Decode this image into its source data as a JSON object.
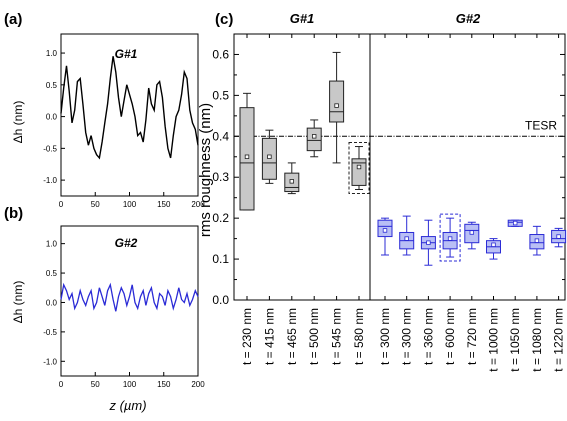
{
  "chart_data": [
    {
      "type": "line",
      "panel_label": "(a)",
      "inset_label": "G#1",
      "ylabel": "Δh (nm)",
      "xlim": [
        0,
        200
      ],
      "ylim": [
        -1.25,
        1.3
      ],
      "xticks": [
        "0",
        "50",
        "100",
        "150",
        "200"
      ],
      "yticks": [
        "1.0",
        "0.5",
        "0.0",
        "-0.5",
        "-1.0"
      ],
      "ytick_values": [
        1.0,
        0.5,
        0.0,
        -0.5,
        -1.0
      ],
      "color": "#000000",
      "x": [
        0,
        4,
        8,
        12,
        16,
        20,
        24,
        28,
        32,
        36,
        40,
        44,
        48,
        52,
        56,
        60,
        64,
        68,
        72,
        76,
        80,
        84,
        88,
        92,
        96,
        100,
        104,
        108,
        112,
        116,
        120,
        124,
        128,
        132,
        136,
        140,
        144,
        148,
        152,
        156,
        160,
        164,
        168,
        172,
        176,
        180,
        184,
        188,
        192,
        196,
        200
      ],
      "y": [
        0.05,
        0.45,
        0.8,
        0.4,
        -0.1,
        0.1,
        0.55,
        0.6,
        0.2,
        -0.25,
        -0.45,
        -0.3,
        -0.5,
        -0.6,
        -0.65,
        -0.4,
        -0.1,
        0.2,
        0.6,
        0.95,
        0.7,
        0.3,
        0.0,
        0.25,
        0.5,
        0.35,
        0.2,
        0.0,
        -0.3,
        -0.25,
        -0.4,
        -0.05,
        0.45,
        0.2,
        0.1,
        0.5,
        0.55,
        0.3,
        -0.15,
        -0.5,
        -0.65,
        -0.3,
        0.0,
        0.1,
        0.35,
        0.7,
        0.6,
        0.1,
        -0.1,
        -0.2,
        -0.45
      ]
    },
    {
      "type": "line",
      "panel_label": "(b)",
      "inset_label": "G#2",
      "ylabel": "Δh (nm)",
      "xlabel": "z (µm)",
      "xlim": [
        0,
        200
      ],
      "ylim": [
        -1.25,
        1.3
      ],
      "xticks": [
        "0",
        "50",
        "100",
        "150",
        "200"
      ],
      "yticks": [
        "1.0",
        "0.5",
        "0.0",
        "-0.5",
        "-1.0"
      ],
      "ytick_values": [
        1.0,
        0.5,
        0.0,
        -0.5,
        -1.0
      ],
      "color": "#2b2bd6",
      "x": [
        0,
        4,
        8,
        12,
        16,
        20,
        24,
        28,
        32,
        36,
        40,
        44,
        48,
        52,
        56,
        60,
        64,
        68,
        72,
        76,
        80,
        84,
        88,
        92,
        96,
        100,
        104,
        108,
        112,
        116,
        120,
        124,
        128,
        132,
        136,
        140,
        144,
        148,
        152,
        156,
        160,
        164,
        168,
        172,
        176,
        180,
        184,
        188,
        192,
        196,
        200
      ],
      "y": [
        0.05,
        0.3,
        0.2,
        0.05,
        0.15,
        -0.1,
        0.0,
        0.2,
        0.05,
        -0.05,
        0.1,
        0.2,
        -0.1,
        0.0,
        0.25,
        0.1,
        -0.05,
        0.2,
        0.3,
        0.05,
        -0.15,
        0.1,
        0.25,
        0.15,
        -0.05,
        0.1,
        0.3,
        0.0,
        -0.1,
        0.1,
        0.2,
        -0.05,
        0.15,
        0.25,
        0.0,
        -0.1,
        0.15,
        0.1,
        -0.05,
        0.2,
        0.1,
        -0.1,
        0.05,
        0.25,
        0.05,
        0.0,
        0.15,
        -0.05,
        0.05,
        0.2,
        0.1
      ]
    },
    {
      "type": "box",
      "panel_label": "(c)",
      "ylabel": "rms roughness (nm)",
      "ylim": [
        0.0,
        0.65
      ],
      "yticks": [
        "0.0",
        "0.1",
        "0.2",
        "0.3",
        "0.4",
        "0.5",
        "0.6"
      ],
      "ytick_values": [
        0.0,
        0.1,
        0.2,
        0.3,
        0.4,
        0.5,
        0.6
      ],
      "tesr_label": "TESR",
      "tesr_value": 0.4,
      "groups": [
        {
          "name": "G#1",
          "fill": "#c8c8c8",
          "stroke": "#222222",
          "categories": [
            "t = 230 nm",
            "t = 415 nm",
            "t = 465 nm",
            "t = 500 nm",
            "t = 545 nm",
            "t = 580 nm"
          ],
          "boxes": [
            {
              "whisker_low": 0.22,
              "q1": 0.22,
              "median": 0.335,
              "q3": 0.47,
              "whisker_high": 0.505,
              "mean": 0.35
            },
            {
              "whisker_low": 0.285,
              "q1": 0.295,
              "median": 0.335,
              "q3": 0.395,
              "whisker_high": 0.415,
              "mean": 0.35
            },
            {
              "whisker_low": 0.26,
              "q1": 0.265,
              "median": 0.275,
              "q3": 0.31,
              "whisker_high": 0.335,
              "mean": 0.29
            },
            {
              "whisker_low": 0.35,
              "q1": 0.365,
              "median": 0.39,
              "q3": 0.42,
              "whisker_high": 0.44,
              "mean": 0.4
            },
            {
              "whisker_low": 0.335,
              "q1": 0.435,
              "median": 0.46,
              "q3": 0.535,
              "whisker_high": 0.605,
              "mean": 0.475
            },
            {
              "whisker_low": 0.27,
              "q1": 0.28,
              "median": 0.335,
              "q3": 0.345,
              "whisker_high": 0.375,
              "mean": 0.325
            }
          ]
        },
        {
          "name": "G#2",
          "fill": "#b9bff5",
          "stroke": "#2b2bd6",
          "categories": [
            "t = 300 nm",
            "t = 300 nm",
            "t = 360 nm",
            "t = 600 nm",
            "t = 720 nm",
            "t = 1000 nm",
            "t = 1050 nm",
            "t = 1080 nm",
            "t = 1220 nm"
          ],
          "boxes": [
            {
              "whisker_low": 0.11,
              "q1": 0.155,
              "median": 0.18,
              "q3": 0.195,
              "whisker_high": 0.2,
              "mean": 0.17
            },
            {
              "whisker_low": 0.11,
              "q1": 0.125,
              "median": 0.145,
              "q3": 0.165,
              "whisker_high": 0.205,
              "mean": 0.15
            },
            {
              "whisker_low": 0.085,
              "q1": 0.125,
              "median": 0.14,
              "q3": 0.155,
              "whisker_high": 0.195,
              "mean": 0.14
            },
            {
              "whisker_low": 0.105,
              "q1": 0.125,
              "median": 0.145,
              "q3": 0.165,
              "whisker_high": 0.2,
              "mean": 0.15
            },
            {
              "whisker_low": 0.125,
              "q1": 0.14,
              "median": 0.17,
              "q3": 0.185,
              "whisker_high": 0.19,
              "mean": 0.165
            },
            {
              "whisker_low": 0.1,
              "q1": 0.115,
              "median": 0.13,
              "q3": 0.145,
              "whisker_high": 0.15,
              "mean": 0.135
            },
            {
              "whisker_low": 0.18,
              "q1": 0.18,
              "median": 0.19,
              "q3": 0.195,
              "whisker_high": 0.195,
              "mean": 0.188
            },
            {
              "whisker_low": 0.11,
              "q1": 0.125,
              "median": 0.14,
              "q3": 0.16,
              "whisker_high": 0.18,
              "mean": 0.145
            },
            {
              "whisker_low": 0.13,
              "q1": 0.14,
              "median": 0.15,
              "q3": 0.17,
              "whisker_high": 0.175,
              "mean": 0.155
            }
          ]
        }
      ]
    }
  ]
}
